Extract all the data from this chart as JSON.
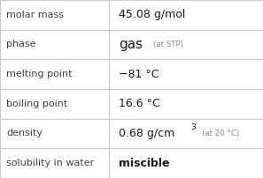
{
  "rows": [
    {
      "label": "molar mass",
      "value_main": "45.08 g/mol",
      "value_small": "",
      "value_super": ""
    },
    {
      "label": "phase",
      "value_main": "gas",
      "value_small": "(at STP)",
      "value_super": ""
    },
    {
      "label": "melting point",
      "value_main": "−81 °C",
      "value_small": "",
      "value_super": ""
    },
    {
      "label": "boiling point",
      "value_main": "16.6 °C",
      "value_small": "",
      "value_super": ""
    },
    {
      "label": "density",
      "value_main": "0.68 g/cm",
      "value_super": "3",
      "value_small": "(at 20 °C)"
    },
    {
      "label": "solubility in water",
      "value_main": "miscible",
      "value_small": "",
      "value_super": ""
    }
  ],
  "bg_color": "#ffffff",
  "border_color": "#c8c8c8",
  "label_color": "#404040",
  "value_color": "#1a1a1a",
  "small_color": "#888888",
  "label_fontsize": 8.0,
  "value_fontsize": 9.0,
  "phase_fontsize": 11.0,
  "small_fontsize": 6.2,
  "super_fontsize": 6.5,
  "col_split": 0.415
}
